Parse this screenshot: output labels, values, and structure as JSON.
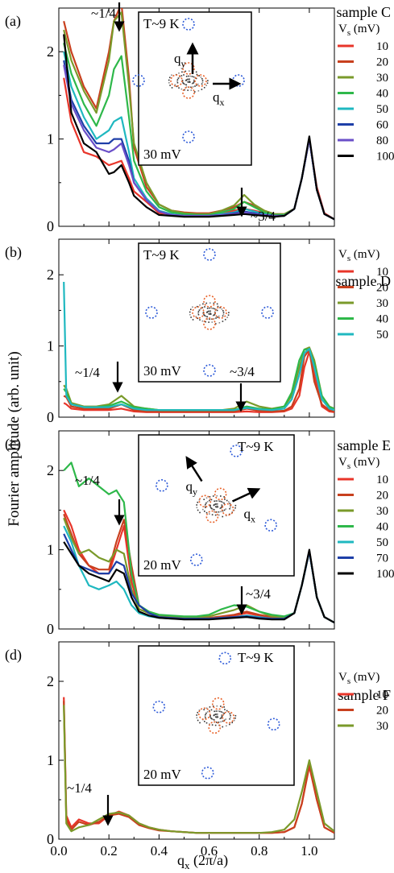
{
  "figure": {
    "ylabel": "Fourier amplitude (arb. unit)",
    "xlabel_main": "q",
    "xlabel_sub": "x",
    "xlabel_tail": " (2π/a)",
    "xticks": [
      "0.0",
      "0.2",
      "0.4",
      "0.6",
      "0.8",
      "1.0"
    ]
  },
  "chart_data": [
    {
      "type": "line",
      "panel_label": "(a)",
      "sample_label": "sample C",
      "temp_label": "T~9 K",
      "inset_bias": "30 mV",
      "legend_title": "V",
      "legend_title_sub": "s",
      "legend_title_unit": " (mV)",
      "annotations": [
        "~1/4",
        "~3/4"
      ],
      "inset_arrows": [
        "q",
        "q"
      ],
      "inset_arrow_subs": [
        "y",
        "x"
      ],
      "xlim": [
        0,
        1.1
      ],
      "ylim": [
        0,
        2.5
      ],
      "yticks": [
        "0",
        "1",
        "2"
      ],
      "x": [
        0.02,
        0.05,
        0.1,
        0.15,
        0.2,
        0.22,
        0.25,
        0.28,
        0.3,
        0.35,
        0.4,
        0.45,
        0.5,
        0.55,
        0.6,
        0.65,
        0.7,
        0.74,
        0.78,
        0.82,
        0.86,
        0.9,
        0.94,
        0.97,
        1.0,
        1.03,
        1.06,
        1.1
      ],
      "series": [
        {
          "name": "10",
          "color": "#e8352a",
          "values": [
            1.7,
            1.2,
            0.85,
            0.8,
            0.7,
            0.72,
            0.75,
            0.55,
            0.4,
            0.28,
            0.15,
            0.14,
            0.12,
            0.12,
            0.12,
            0.15,
            0.18,
            0.2,
            0.18,
            0.15,
            0.13,
            0.13,
            0.2,
            0.55,
            1.0,
            0.45,
            0.15,
            0.08
          ]
        },
        {
          "name": "20",
          "color": "#c8401e",
          "values": [
            2.35,
            2.0,
            1.6,
            1.35,
            2.0,
            2.35,
            2.55,
            1.7,
            0.9,
            0.45,
            0.25,
            0.18,
            0.16,
            0.15,
            0.15,
            0.18,
            0.22,
            0.28,
            0.24,
            0.18,
            0.14,
            0.14,
            0.2,
            0.55,
            1.0,
            0.42,
            0.14,
            0.08
          ]
        },
        {
          "name": "30",
          "color": "#7a9a2a",
          "values": [
            2.25,
            1.9,
            1.55,
            1.3,
            1.9,
            2.35,
            2.45,
            1.6,
            0.95,
            0.5,
            0.25,
            0.18,
            0.15,
            0.14,
            0.14,
            0.18,
            0.24,
            0.36,
            0.25,
            0.18,
            0.14,
            0.14,
            0.2,
            0.55,
            1.0,
            0.42,
            0.14,
            0.08
          ]
        },
        {
          "name": "40",
          "color": "#2eb84a",
          "values": [
            2.1,
            1.75,
            1.4,
            1.15,
            1.5,
            1.8,
            1.95,
            1.25,
            0.75,
            0.4,
            0.22,
            0.16,
            0.14,
            0.13,
            0.13,
            0.16,
            0.2,
            0.28,
            0.22,
            0.16,
            0.13,
            0.13,
            0.2,
            0.55,
            1.0,
            0.42,
            0.14,
            0.08
          ]
        },
        {
          "name": "50",
          "color": "#1fb8c0",
          "values": [
            2.0,
            1.6,
            1.25,
            1.0,
            1.1,
            1.2,
            1.25,
            0.85,
            0.55,
            0.32,
            0.18,
            0.14,
            0.12,
            0.12,
            0.12,
            0.14,
            0.16,
            0.2,
            0.17,
            0.14,
            0.12,
            0.12,
            0.2,
            0.55,
            1.0,
            0.42,
            0.14,
            0.08
          ]
        },
        {
          "name": "60",
          "color": "#1e3fa8",
          "values": [
            1.9,
            1.45,
            1.15,
            0.95,
            0.95,
            1.0,
            1.0,
            0.75,
            0.5,
            0.3,
            0.17,
            0.13,
            0.12,
            0.12,
            0.12,
            0.13,
            0.15,
            0.17,
            0.15,
            0.13,
            0.12,
            0.12,
            0.2,
            0.55,
            1.0,
            0.42,
            0.14,
            0.08
          ]
        },
        {
          "name": "80",
          "color": "#6a4fc8",
          "values": [
            1.85,
            1.4,
            1.1,
            0.9,
            0.85,
            0.88,
            0.95,
            0.7,
            0.5,
            0.3,
            0.17,
            0.13,
            0.12,
            0.12,
            0.12,
            0.13,
            0.14,
            0.16,
            0.14,
            0.13,
            0.12,
            0.12,
            0.2,
            0.55,
            1.0,
            0.42,
            0.14,
            0.08
          ]
        },
        {
          "name": "100",
          "color": "#000000",
          "values": [
            2.2,
            1.3,
            0.95,
            0.85,
            0.6,
            0.62,
            0.7,
            0.5,
            0.35,
            0.22,
            0.13,
            0.12,
            0.11,
            0.11,
            0.11,
            0.12,
            0.13,
            0.14,
            0.13,
            0.12,
            0.11,
            0.12,
            0.2,
            0.55,
            1.03,
            0.42,
            0.14,
            0.08
          ]
        }
      ]
    },
    {
      "type": "line",
      "panel_label": "(b)",
      "sample_label": "sample D",
      "temp_label": "T~9 K",
      "inset_bias": "30 mV",
      "legend_title": "V",
      "legend_title_sub": "s",
      "legend_title_unit": " (mV)",
      "annotations": [
        "~1/4",
        "~3/4"
      ],
      "inset_arrows": [],
      "inset_arrow_subs": [],
      "xlim": [
        0,
        1.1
      ],
      "ylim": [
        0,
        2.5
      ],
      "yticks": [
        "0",
        "1",
        "2"
      ],
      "x": [
        0.02,
        0.03,
        0.05,
        0.1,
        0.15,
        0.2,
        0.25,
        0.3,
        0.35,
        0.4,
        0.45,
        0.5,
        0.55,
        0.6,
        0.65,
        0.7,
        0.75,
        0.8,
        0.85,
        0.9,
        0.93,
        0.96,
        0.98,
        1.0,
        1.02,
        1.05,
        1.08,
        1.1
      ],
      "series": [
        {
          "name": "10",
          "color": "#e8352a",
          "values": [
            0.2,
            0.18,
            0.12,
            0.1,
            0.1,
            0.1,
            0.12,
            0.08,
            0.07,
            0.07,
            0.07,
            0.07,
            0.07,
            0.07,
            0.07,
            0.07,
            0.08,
            0.07,
            0.07,
            0.08,
            0.12,
            0.3,
            0.7,
            0.92,
            0.6,
            0.15,
            0.08,
            0.07
          ]
        },
        {
          "name": "20",
          "color": "#c8401e",
          "values": [
            0.3,
            0.28,
            0.15,
            0.12,
            0.12,
            0.12,
            0.18,
            0.1,
            0.08,
            0.08,
            0.08,
            0.08,
            0.08,
            0.08,
            0.08,
            0.08,
            0.12,
            0.09,
            0.08,
            0.09,
            0.15,
            0.4,
            0.85,
            0.95,
            0.5,
            0.18,
            0.1,
            0.08
          ]
        },
        {
          "name": "30",
          "color": "#7a9a2a",
          "values": [
            0.45,
            0.4,
            0.2,
            0.15,
            0.15,
            0.18,
            0.3,
            0.15,
            0.12,
            0.1,
            0.1,
            0.1,
            0.1,
            0.1,
            0.1,
            0.12,
            0.22,
            0.15,
            0.12,
            0.15,
            0.3,
            0.7,
            0.95,
            0.98,
            0.8,
            0.3,
            0.15,
            0.12
          ]
        },
        {
          "name": "40",
          "color": "#2eb84a",
          "values": [
            0.4,
            0.35,
            0.18,
            0.14,
            0.14,
            0.16,
            0.22,
            0.14,
            0.12,
            0.1,
            0.1,
            0.1,
            0.1,
            0.1,
            0.1,
            0.1,
            0.15,
            0.12,
            0.11,
            0.15,
            0.35,
            0.8,
            0.95,
            0.95,
            0.75,
            0.3,
            0.14,
            0.12
          ]
        },
        {
          "name": "50",
          "color": "#1fb8c0",
          "values": [
            1.9,
            0.3,
            0.18,
            0.14,
            0.14,
            0.14,
            0.18,
            0.12,
            0.1,
            0.1,
            0.1,
            0.1,
            0.1,
            0.1,
            0.1,
            0.1,
            0.13,
            0.11,
            0.1,
            0.12,
            0.25,
            0.6,
            0.9,
            0.96,
            0.7,
            0.25,
            0.12,
            0.1
          ]
        }
      ]
    },
    {
      "type": "line",
      "panel_label": "(c)",
      "sample_label": "sample E",
      "temp_label": "T~9 K",
      "inset_bias": "20 mV",
      "legend_title": "V",
      "legend_title_sub": "s",
      "legend_title_unit": " (mV)",
      "annotations": [
        "~1/4",
        "~3/4"
      ],
      "inset_arrows": [
        "q",
        "q"
      ],
      "inset_arrow_subs": [
        "y",
        "x"
      ],
      "xlim": [
        0,
        1.1
      ],
      "ylim": [
        0,
        2.5
      ],
      "yticks": [
        "0",
        "1",
        "2"
      ],
      "x": [
        0.02,
        0.05,
        0.08,
        0.12,
        0.16,
        0.2,
        0.23,
        0.26,
        0.29,
        0.32,
        0.36,
        0.4,
        0.45,
        0.5,
        0.55,
        0.6,
        0.65,
        0.7,
        0.75,
        0.8,
        0.85,
        0.9,
        0.94,
        0.97,
        1.0,
        1.03,
        1.06,
        1.1
      ],
      "series": [
        {
          "name": "10",
          "color": "#e8352a",
          "values": [
            1.5,
            1.3,
            1.0,
            0.8,
            0.7,
            0.7,
            1.0,
            1.3,
            0.6,
            0.25,
            0.2,
            0.15,
            0.15,
            0.14,
            0.14,
            0.14,
            0.15,
            0.17,
            0.2,
            0.17,
            0.15,
            0.14,
            0.2,
            0.55,
            0.98,
            0.4,
            0.15,
            0.08
          ]
        },
        {
          "name": "20",
          "color": "#c8401e",
          "values": [
            1.45,
            1.2,
            0.95,
            0.8,
            0.75,
            0.75,
            1.1,
            1.38,
            0.8,
            0.3,
            0.2,
            0.16,
            0.15,
            0.14,
            0.14,
            0.14,
            0.16,
            0.18,
            0.22,
            0.18,
            0.15,
            0.14,
            0.2,
            0.55,
            0.98,
            0.4,
            0.15,
            0.08
          ]
        },
        {
          "name": "30",
          "color": "#7a9a2a",
          "values": [
            1.4,
            1.15,
            0.95,
            1.0,
            0.9,
            0.85,
            1.0,
            0.95,
            0.5,
            0.25,
            0.2,
            0.17,
            0.16,
            0.15,
            0.15,
            0.16,
            0.2,
            0.24,
            0.3,
            0.22,
            0.16,
            0.15,
            0.2,
            0.55,
            0.98,
            0.4,
            0.15,
            0.08
          ]
        },
        {
          "name": "40",
          "color": "#2eb84a",
          "values": [
            2.0,
            2.1,
            1.8,
            1.9,
            1.8,
            1.7,
            1.75,
            1.6,
            0.7,
            0.3,
            0.22,
            0.18,
            0.17,
            0.16,
            0.16,
            0.18,
            0.25,
            0.3,
            0.28,
            0.22,
            0.18,
            0.16,
            0.2,
            0.55,
            0.98,
            0.4,
            0.15,
            0.08
          ]
        },
        {
          "name": "50",
          "color": "#1fb8c0",
          "values": [
            1.3,
            1.1,
            0.8,
            0.55,
            0.5,
            0.55,
            0.6,
            0.5,
            0.3,
            0.2,
            0.16,
            0.14,
            0.13,
            0.13,
            0.13,
            0.13,
            0.14,
            0.15,
            0.17,
            0.15,
            0.13,
            0.13,
            0.2,
            0.55,
            0.98,
            0.4,
            0.15,
            0.08
          ]
        },
        {
          "name": "70",
          "color": "#1e3fa8",
          "values": [
            1.2,
            1.0,
            0.8,
            0.75,
            0.7,
            0.7,
            0.85,
            0.8,
            0.45,
            0.3,
            0.2,
            0.15,
            0.14,
            0.13,
            0.13,
            0.13,
            0.14,
            0.15,
            0.16,
            0.14,
            0.13,
            0.13,
            0.2,
            0.55,
            0.98,
            0.4,
            0.15,
            0.08
          ]
        },
        {
          "name": "100",
          "color": "#000000",
          "values": [
            1.1,
            0.95,
            0.8,
            0.7,
            0.65,
            0.6,
            0.75,
            0.7,
            0.4,
            0.22,
            0.17,
            0.14,
            0.13,
            0.12,
            0.12,
            0.12,
            0.13,
            0.14,
            0.15,
            0.13,
            0.12,
            0.12,
            0.2,
            0.55,
            1.0,
            0.4,
            0.15,
            0.08
          ]
        }
      ]
    },
    {
      "type": "line",
      "panel_label": "(d)",
      "sample_label": "sample F",
      "temp_label": "T~9 K",
      "inset_bias": "20 mV",
      "legend_title": "V",
      "legend_title_sub": "s",
      "legend_title_unit": " (mV)",
      "annotations": [
        "~1/4"
      ],
      "inset_arrows": [],
      "inset_arrow_subs": [],
      "xlim": [
        0,
        1.1
      ],
      "ylim": [
        0,
        2.5
      ],
      "yticks": [
        "0",
        "1",
        "2"
      ],
      "x": [
        0.02,
        0.03,
        0.05,
        0.08,
        0.12,
        0.16,
        0.2,
        0.24,
        0.28,
        0.32,
        0.36,
        0.4,
        0.45,
        0.5,
        0.55,
        0.6,
        0.65,
        0.7,
        0.75,
        0.8,
        0.85,
        0.9,
        0.94,
        0.97,
        1.0,
        1.03,
        1.06,
        1.1
      ],
      "series": [
        {
          "name": "10",
          "color": "#e8352a",
          "values": [
            1.8,
            0.3,
            0.15,
            0.25,
            0.2,
            0.2,
            0.3,
            0.35,
            0.3,
            0.2,
            0.15,
            0.12,
            0.1,
            0.09,
            0.08,
            0.08,
            0.08,
            0.08,
            0.08,
            0.08,
            0.08,
            0.09,
            0.15,
            0.45,
            0.92,
            0.5,
            0.15,
            0.08
          ]
        },
        {
          "name": "20",
          "color": "#c8401e",
          "values": [
            1.75,
            0.25,
            0.12,
            0.22,
            0.18,
            0.22,
            0.3,
            0.32,
            0.28,
            0.18,
            0.14,
            0.11,
            0.1,
            0.09,
            0.08,
            0.08,
            0.08,
            0.08,
            0.08,
            0.08,
            0.08,
            0.09,
            0.15,
            0.45,
            0.95,
            0.5,
            0.15,
            0.08
          ]
        },
        {
          "name": "30",
          "color": "#7a9a2a",
          "values": [
            1.7,
            0.2,
            0.1,
            0.15,
            0.18,
            0.25,
            0.32,
            0.34,
            0.3,
            0.2,
            0.15,
            0.12,
            0.1,
            0.09,
            0.08,
            0.08,
            0.08,
            0.08,
            0.08,
            0.08,
            0.09,
            0.12,
            0.25,
            0.6,
            1.0,
            0.6,
            0.2,
            0.1
          ]
        }
      ]
    }
  ]
}
